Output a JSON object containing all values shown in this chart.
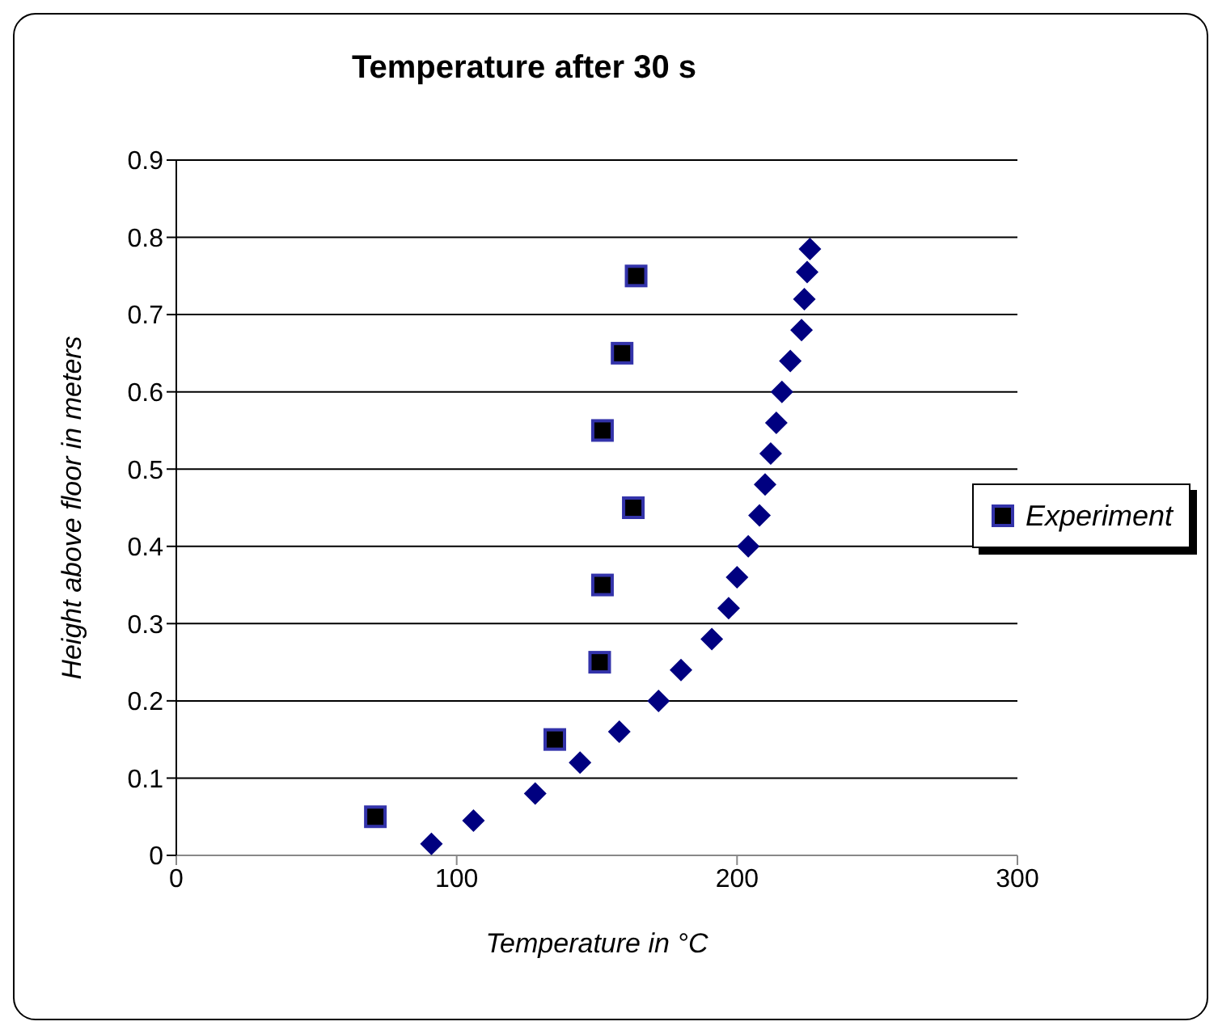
{
  "chart_data": {
    "type": "scatter",
    "title": "Temperature after 30 s",
    "xlabel": "Temperature in °C",
    "ylabel": "Height above floor in meters",
    "xlim": [
      0,
      300
    ],
    "xticks": [
      0,
      100,
      200,
      300
    ],
    "ylim": [
      0,
      0.9
    ],
    "yticks": [
      0,
      0.1,
      0.2,
      0.3,
      0.4,
      0.5,
      0.6,
      0.7,
      0.8,
      0.9
    ],
    "grid": "y",
    "legend": "right",
    "series": [
      {
        "color": "#000080",
        "marker": "diamond",
        "x": [
          91,
          106,
          128,
          144,
          158,
          172,
          180,
          191,
          197,
          200,
          204,
          208,
          210,
          212,
          214,
          216,
          219,
          223,
          224,
          225,
          226
        ],
        "values": [
          0.015,
          0.045,
          0.08,
          0.12,
          0.16,
          0.2,
          0.24,
          0.28,
          0.32,
          0.36,
          0.4,
          0.44,
          0.48,
          0.52,
          0.56,
          0.6,
          0.64,
          0.68,
          0.72,
          0.755,
          0.785
        ]
      },
      {
        "name": "Experiment",
        "color": "#000000",
        "marker": "square",
        "x": [
          71,
          135,
          151,
          152,
          163,
          152,
          159,
          164
        ],
        "values": [
          0.05,
          0.15,
          0.25,
          0.35,
          0.45,
          0.55,
          0.65,
          0.75
        ]
      }
    ]
  }
}
